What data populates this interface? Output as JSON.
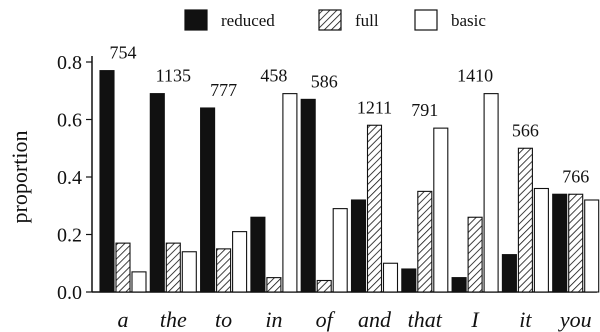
{
  "chart_data": {
    "type": "bar",
    "ylabel": "proportion",
    "ylim": [
      0,
      0.8
    ],
    "yticks": [
      "0.0",
      "0.2",
      "0.4",
      "0.6",
      "0.8"
    ],
    "categories": [
      "a",
      "the",
      "to",
      "in",
      "of",
      "and",
      "that",
      "I",
      "it",
      "you"
    ],
    "counts": [
      "754",
      "1135",
      "777",
      "458",
      "586",
      "1211",
      "791",
      "1410",
      "566",
      "766"
    ],
    "legend_position": "top",
    "series": [
      {
        "name": "reduced",
        "fill": "solid",
        "color": "#111111",
        "values": [
          0.77,
          0.69,
          0.64,
          0.26,
          0.67,
          0.32,
          0.08,
          0.05,
          0.13,
          0.34
        ]
      },
      {
        "name": "full",
        "fill": "hatched",
        "color": "#111111",
        "values": [
          0.17,
          0.17,
          0.15,
          0.05,
          0.04,
          0.58,
          0.35,
          0.26,
          0.5,
          0.34
        ]
      },
      {
        "name": "basic",
        "fill": "empty",
        "color": "#111111",
        "values": [
          0.07,
          0.14,
          0.21,
          0.69,
          0.29,
          0.1,
          0.57,
          0.69,
          0.36,
          0.32
        ]
      }
    ]
  }
}
